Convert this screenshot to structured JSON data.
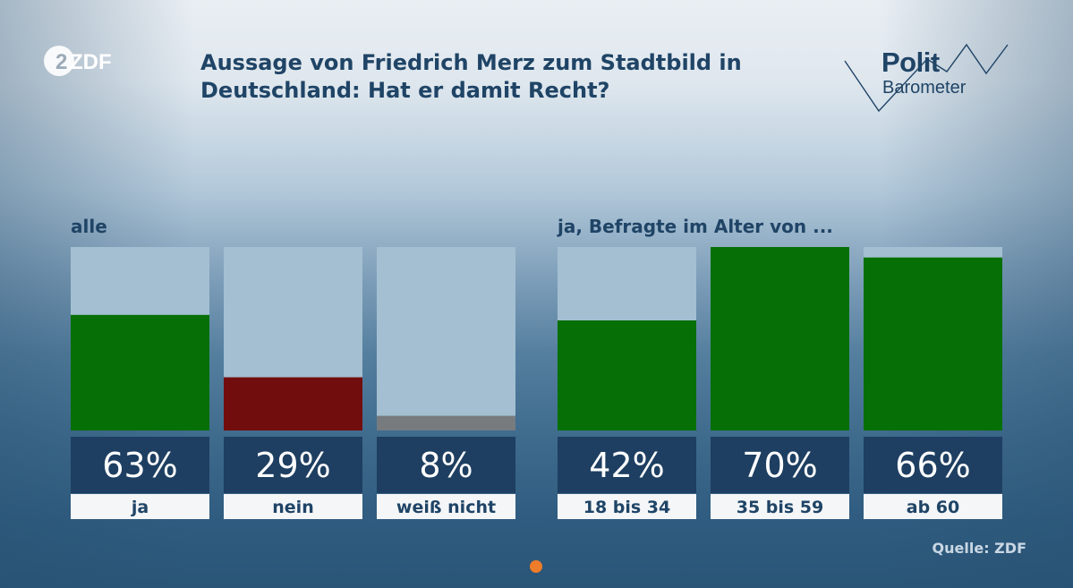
{
  "header": {
    "channel_logo": "ZDF",
    "title_line1": "Aussage von Friedrich Merz zum Stadtbild in",
    "title_line2": "Deutschland: Hat er damit Recht?",
    "brand_line1": "Polit",
    "brand_line2": "Barometer"
  },
  "colors": {
    "yes": "#067006",
    "no": "#720d0d",
    "dont_know": "#777b7e",
    "track": "#a3bfd1",
    "value_box": "#1e3f61",
    "label_box": "#f4f6f8",
    "text_dark": "#1f4466"
  },
  "chart_data": [
    {
      "type": "bar",
      "group_label": "alle",
      "categories": [
        "ja",
        "nein",
        "weiß nicht"
      ],
      "values": [
        63,
        29,
        8
      ],
      "value_labels": [
        "63%",
        "29%",
        "8%"
      ],
      "bar_colors": [
        "#067006",
        "#720d0d",
        "#777b7e"
      ],
      "ylim": [
        0,
        100
      ]
    },
    {
      "type": "bar",
      "group_label": "ja, Befragte im Alter von ...",
      "categories": [
        "18 bis 34",
        "35 bis 59",
        "ab 60"
      ],
      "values": [
        42,
        70,
        66
      ],
      "value_labels": [
        "42%",
        "70%",
        "66%"
      ],
      "bar_colors": [
        "#067006",
        "#067006",
        "#067006"
      ],
      "ylim": [
        0,
        70
      ]
    }
  ],
  "footer": {
    "source": "Quelle: ZDF"
  }
}
